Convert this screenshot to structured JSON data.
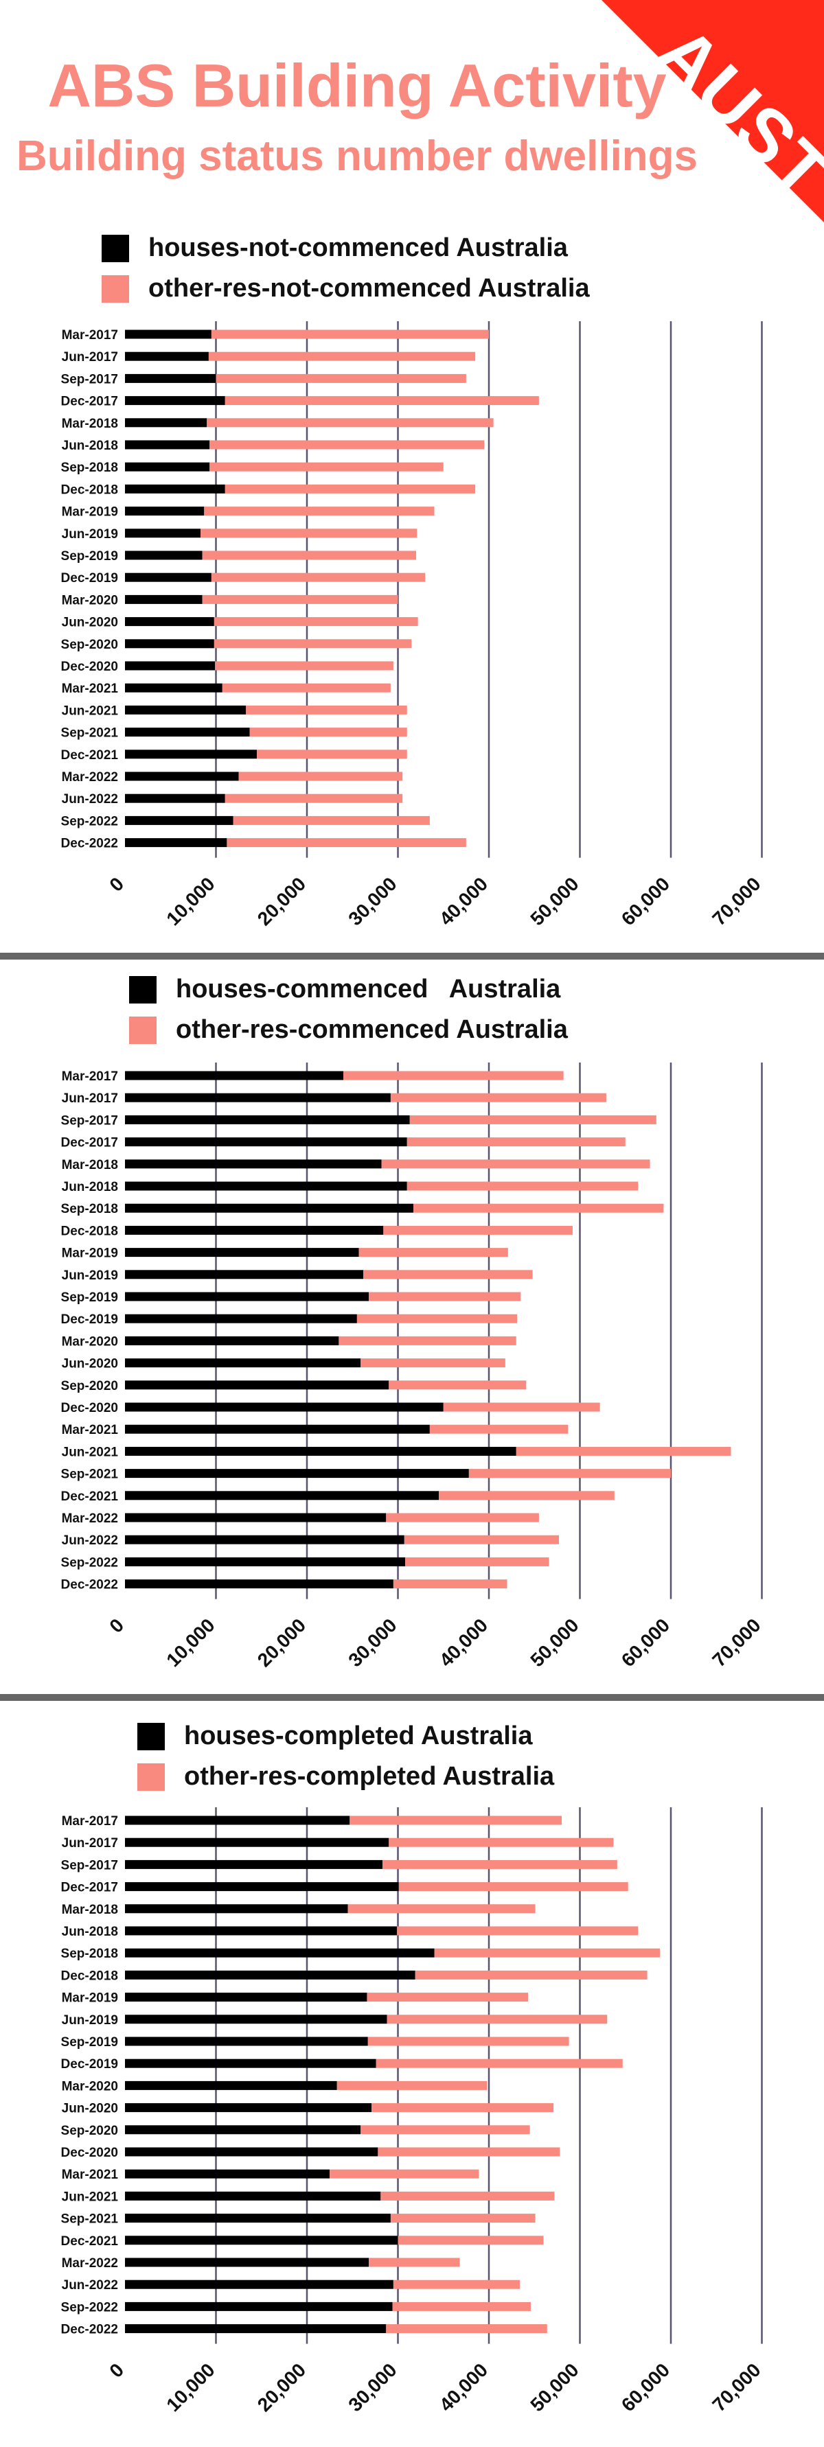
{
  "header": {
    "title": "ABS Building Activity",
    "subtitle": "Building status number dwellings",
    "badge": "AUST"
  },
  "colors": {
    "houses": "#000000",
    "other": "#f88a80",
    "title": "#f88a80",
    "badge": "#ff2a1a",
    "grid": "#5a5470"
  },
  "chart_data": [
    {
      "type": "bar",
      "orientation": "horizontal",
      "stacked": true,
      "title": "",
      "xlim": [
        0,
        70000
      ],
      "xticks": [
        "0",
        "10,000",
        "20,000",
        "30,000",
        "40,000",
        "50,000",
        "60,000",
        "70,000"
      ],
      "categories": [
        "Mar-2017",
        "Jun-2017",
        "Sep-2017",
        "Dec-2017",
        "Mar-2018",
        "Jun-2018",
        "Sep-2018",
        "Dec-2018",
        "Mar-2019",
        "Jun-2019",
        "Sep-2019",
        "Dec-2019",
        "Mar-2020",
        "Jun-2020",
        "Sep-2020",
        "Dec-2020",
        "Mar-2021",
        "Jun-2021",
        "Sep-2021",
        "Dec-2021",
        "Mar-2022",
        "Jun-2022",
        "Sep-2022",
        "Dec-2022"
      ],
      "series": [
        {
          "name": "houses-not-commenced Australia",
          "values": [
            9500,
            9200,
            10000,
            11000,
            9000,
            9300,
            9300,
            11000,
            8700,
            8300,
            8500,
            9500,
            8500,
            9800,
            9800,
            9900,
            10700,
            13300,
            13700,
            14500,
            12500,
            11000,
            11900,
            11200
          ]
        },
        {
          "name": "other-res-not-commenced Australia",
          "values": [
            30500,
            29300,
            27500,
            34500,
            31500,
            30200,
            25700,
            27500,
            25300,
            23800,
            23500,
            23500,
            21500,
            22400,
            21700,
            19600,
            18500,
            17700,
            17300,
            16500,
            18000,
            19500,
            21600,
            26300
          ]
        }
      ]
    },
    {
      "type": "bar",
      "orientation": "horizontal",
      "stacked": true,
      "title": "",
      "xlim": [
        0,
        70000
      ],
      "xticks": [
        "0",
        "10,000",
        "20,000",
        "30,000",
        "40,000",
        "50,000",
        "60,000",
        "70,000"
      ],
      "categories": [
        "Mar-2017",
        "Jun-2017",
        "Sep-2017",
        "Dec-2017",
        "Mar-2018",
        "Jun-2018",
        "Sep-2018",
        "Dec-2018",
        "Mar-2019",
        "Jun-2019",
        "Sep-2019",
        "Dec-2019",
        "Mar-2020",
        "Jun-2020",
        "Sep-2020",
        "Dec-2020",
        "Mar-2021",
        "Jun-2021",
        "Sep-2021",
        "Dec-2021",
        "Mar-2022",
        "Jun-2022",
        "Sep-2022",
        "Dec-2022"
      ],
      "series": [
        {
          "name": "houses-commenced   Australia",
          "values": [
            24000,
            29200,
            31300,
            31000,
            28200,
            31000,
            31700,
            28400,
            25700,
            26200,
            26800,
            25500,
            23500,
            25900,
            29000,
            35000,
            33500,
            43000,
            37800,
            34500,
            28700,
            30700,
            30800,
            29500
          ]
        },
        {
          "name": "other-res-commenced Australia",
          "values": [
            24200,
            23700,
            27100,
            24000,
            29500,
            25400,
            27500,
            20800,
            16400,
            18600,
            16700,
            17600,
            19500,
            15900,
            15100,
            17200,
            15200,
            23600,
            22200,
            19300,
            16800,
            17000,
            15800,
            12500
          ]
        }
      ]
    },
    {
      "type": "bar",
      "orientation": "horizontal",
      "stacked": true,
      "title": "",
      "xlim": [
        0,
        70000
      ],
      "xticks": [
        "0",
        "10,000",
        "20,000",
        "30,000",
        "40,000",
        "50,000",
        "60,000",
        "70,000"
      ],
      "categories": [
        "Mar-2017",
        "Jun-2017",
        "Sep-2017",
        "Dec-2017",
        "Mar-2018",
        "Jun-2018",
        "Sep-2018",
        "Dec-2018",
        "Mar-2019",
        "Jun-2019",
        "Sep-2019",
        "Dec-2019",
        "Mar-2020",
        "Jun-2020",
        "Sep-2020",
        "Dec-2020",
        "Mar-2021",
        "Jun-2021",
        "Sep-2021",
        "Dec-2021",
        "Mar-2022",
        "Jun-2022",
        "Sep-2022",
        "Dec-2022"
      ],
      "series": [
        {
          "name": "houses-completed Australia",
          "values": [
            24700,
            29000,
            28300,
            30100,
            24500,
            29900,
            34000,
            31900,
            26600,
            28800,
            26700,
            27600,
            23300,
            27100,
            25900,
            27800,
            22500,
            28100,
            29200,
            30000,
            26800,
            29500,
            29400,
            28700
          ]
        },
        {
          "name": "other-res-completed Australia",
          "values": [
            23300,
            24700,
            25800,
            25200,
            20600,
            26500,
            24800,
            25500,
            17700,
            24200,
            22100,
            27100,
            16500,
            20000,
            18600,
            20000,
            16400,
            19100,
            15900,
            16000,
            10000,
            13900,
            15200,
            17700
          ]
        }
      ]
    }
  ]
}
